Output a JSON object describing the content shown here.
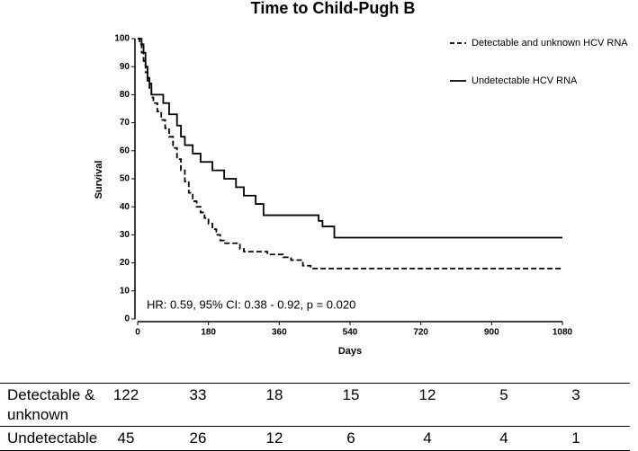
{
  "chart_data": {
    "type": "step",
    "title": "Time to Child-Pugh B",
    "x_label": "Days",
    "y_label": "Survival",
    "annotation": "HR: 0.59, 95% CI: 0.38 - 0.92, p = 0.020",
    "xlim": [
      0,
      1080
    ],
    "xticks": [
      0,
      180,
      360,
      540,
      720,
      900,
      1080
    ],
    "ylim": [
      0,
      100
    ],
    "yticks": [
      0,
      10,
      20,
      30,
      40,
      50,
      60,
      70,
      80,
      90,
      100
    ],
    "series": [
      {
        "name": "Detectable and unknown HCV RNA",
        "color": "#000000",
        "line_style": "dashed",
        "x": [
          0,
          5,
          10,
          15,
          20,
          25,
          30,
          35,
          40,
          50,
          60,
          70,
          80,
          90,
          100,
          110,
          120,
          130,
          140,
          150,
          160,
          170,
          180,
          190,
          200,
          210,
          220,
          260,
          270,
          330,
          370,
          390,
          420,
          440,
          1080
        ],
        "values": [
          100,
          98,
          95,
          92,
          88,
          85,
          82,
          79,
          77,
          74,
          71,
          68,
          65,
          61,
          57,
          53,
          49,
          45,
          42,
          40,
          38,
          36,
          34,
          32,
          30,
          28,
          27,
          25,
          24,
          23,
          22,
          21,
          19,
          18,
          18
        ]
      },
      {
        "name": "Undetectable HCV RNA",
        "color": "#000000",
        "line_style": "solid",
        "x": [
          0,
          10,
          15,
          20,
          25,
          30,
          35,
          65,
          80,
          100,
          110,
          120,
          140,
          160,
          190,
          220,
          250,
          270,
          300,
          320,
          460,
          470,
          500,
          1080
        ],
        "values": [
          100,
          98,
          95,
          90,
          86,
          84,
          80,
          77,
          73,
          69,
          65,
          62,
          59,
          56,
          53,
          50,
          47,
          44,
          41,
          37,
          35,
          33,
          29,
          29
        ]
      }
    ]
  },
  "risk_table": {
    "rows": [
      {
        "label": "Detectable & unknown",
        "counts": [
          "122",
          "33",
          "18",
          "15",
          "12",
          "5",
          "3"
        ]
      },
      {
        "label": "Undetectable",
        "counts": [
          "45",
          "26",
          "12",
          "6",
          "4",
          "4",
          "1"
        ]
      }
    ]
  }
}
